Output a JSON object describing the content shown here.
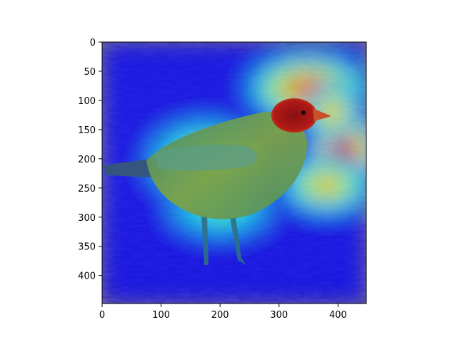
{
  "chart_data": {
    "type": "heatmap",
    "title": "",
    "xlabel": "",
    "ylabel": "",
    "xlim": [
      0,
      448
    ],
    "ylim": [
      448,
      0
    ],
    "y_axis_inverted": true,
    "grid": false,
    "legend": "none",
    "x_ticks": [
      0,
      100,
      200,
      300,
      400
    ],
    "y_ticks": [
      0,
      50,
      100,
      150,
      200,
      250,
      300,
      350,
      400
    ],
    "background_image": "bird photograph (greenfinch-like bird standing on dry grass, facing right)",
    "colormap": "jet",
    "hotspots": [
      {
        "x": 350,
        "y": 80,
        "rx": 95,
        "ry": 55,
        "intensity": 0.85
      },
      {
        "x": 410,
        "y": 190,
        "rx": 55,
        "ry": 70,
        "intensity": 1.0
      },
      {
        "x": 380,
        "y": 245,
        "rx": 70,
        "ry": 45,
        "intensity": 0.7
      },
      {
        "x": 175,
        "y": 205,
        "rx": 90,
        "ry": 65,
        "intensity": 0.55
      },
      {
        "x": 200,
        "y": 285,
        "rx": 80,
        "ry": 45,
        "intensity": 0.45
      },
      {
        "x": 390,
        "y": 120,
        "rx": 40,
        "ry": 45,
        "intensity": 0.75
      }
    ]
  }
}
